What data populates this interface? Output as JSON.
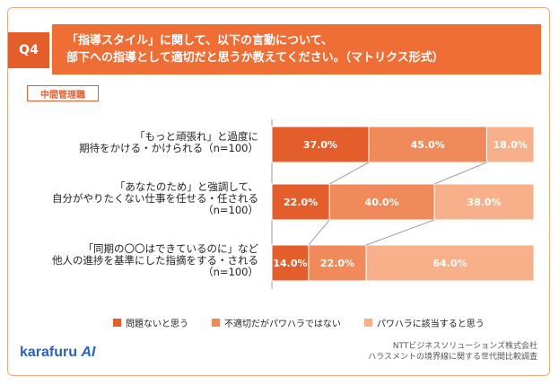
{
  "header": {
    "question_label": "Q4",
    "title_line1": "「指導スタイル」に関して、以下の言動について、",
    "title_line2": "部下への指導として適切だと思うか教えてください。（マトリクス形式）"
  },
  "segment_label": "中間管理職",
  "rows": [
    {
      "line1": "「もっと頑張れ」と過度に",
      "line2": "期待をかける・かけられる（n=100）",
      "line3": ""
    },
    {
      "line1": "「あなたのため」と強調して、",
      "line2": "自分がやりたくない仕事を任せる・任される",
      "line3": "（n=100）"
    },
    {
      "line1": "「同期の〇〇はできているのに」など",
      "line2": "他人の進捗を基準にした指摘をする・される",
      "line3": "（n=100）"
    }
  ],
  "chart_data": {
    "type": "bar",
    "orientation": "horizontal",
    "stacked": "percent",
    "categories": [
      "「もっと頑張れ」と過度に期待をかける・かけられる（n=100）",
      "「あなたのため」と強調して、自分がやりたくない仕事を任せる・任される（n=100）",
      "「同期の〇〇はできているのに」など他人の進捗を基準にした指摘をする・される（n=100）"
    ],
    "series": [
      {
        "name": "問題ないと思う",
        "color": "#e45e2c",
        "values": [
          37.0,
          22.0,
          14.0
        ],
        "labels": [
          "37.0%",
          "22.0%",
          "14.0%"
        ]
      },
      {
        "name": "不適切だがパワハラではない",
        "color": "#f08a5a",
        "values": [
          45.0,
          40.0,
          22.0
        ],
        "labels": [
          "45.0%",
          "40.0%",
          "22.0%"
        ]
      },
      {
        "name": "パワハラに該当すると思う",
        "color": "#f7b08a",
        "values": [
          18.0,
          38.0,
          64.0
        ],
        "labels": [
          "18.0%",
          "38.0%",
          "64.0%"
        ]
      }
    ],
    "xlim": [
      0,
      100
    ]
  },
  "legend": [
    "問題ないと思う",
    "不適切だがパワハラではない",
    "パワハラに該当すると思う"
  ],
  "footer": {
    "logo_main": "karafuru",
    "logo_ai": "AI",
    "source_line1": "NTTビジネスソリューションズ株式会社",
    "source_line2": "ハラスメントの境界線に関する世代間比較調査"
  }
}
